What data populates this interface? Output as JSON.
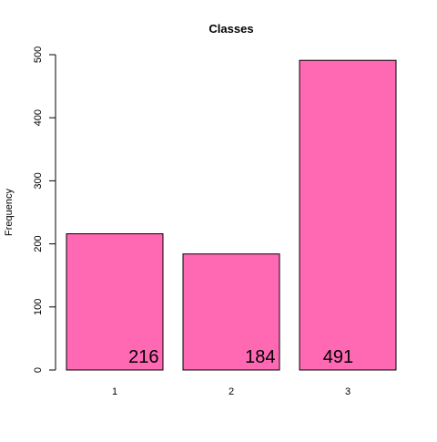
{
  "chart_data": {
    "type": "bar",
    "title": "Classes",
    "xlabel": "",
    "ylabel": "Frequency",
    "categories": [
      "1",
      "2",
      "3"
    ],
    "values": [
      216,
      184,
      491
    ],
    "ylim": [
      0,
      500
    ],
    "yticks": [
      0,
      100,
      200,
      300,
      400,
      500
    ],
    "data_labels": [
      "216",
      "184",
      "491"
    ],
    "grid": false,
    "legend": "none",
    "bar_color": "#FF69B4",
    "bar_edge_color": "#000000"
  }
}
